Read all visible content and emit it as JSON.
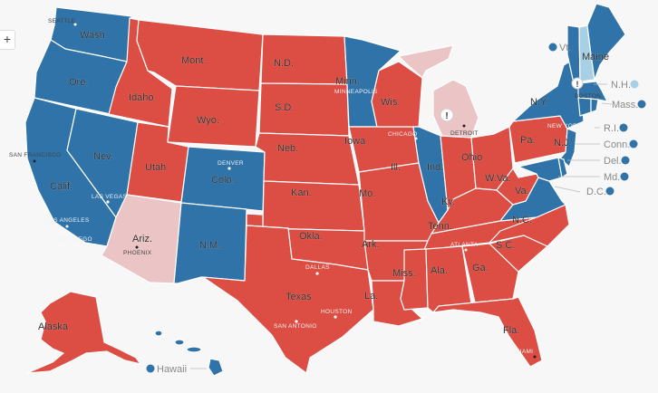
{
  "colors": {
    "dem": "#2f73a9",
    "rep": "#dc4d43",
    "lean_rep": "#ebc5c5",
    "lean_dem": "#a8d0e4",
    "border": "#ffffff",
    "background": "#f7f7f7"
  },
  "zoom_button": "+",
  "alert_icon": "!",
  "states": {
    "WA": {
      "label": "Wash.",
      "result": "dem"
    },
    "OR": {
      "label": "Ore.",
      "result": "dem"
    },
    "CA": {
      "label": "Calif.",
      "result": "dem"
    },
    "NV": {
      "label": "Nev.",
      "result": "dem"
    },
    "ID": {
      "label": "Idaho",
      "result": "rep"
    },
    "MT": {
      "label": "Mont.",
      "result": "rep"
    },
    "WY": {
      "label": "Wyo.",
      "result": "rep"
    },
    "UT": {
      "label": "Utah",
      "result": "rep"
    },
    "CO": {
      "label": "Colo.",
      "result": "dem"
    },
    "AZ": {
      "label": "Ariz.",
      "result": "lean_rep"
    },
    "NM": {
      "label": "N.M.",
      "result": "dem"
    },
    "ND": {
      "label": "N.D.",
      "result": "rep"
    },
    "SD": {
      "label": "S.D.",
      "result": "rep"
    },
    "NE": {
      "label": "Neb.",
      "result": "rep"
    },
    "KS": {
      "label": "Kan.",
      "result": "rep"
    },
    "OK": {
      "label": "Okla.",
      "result": "rep"
    },
    "TX": {
      "label": "Texas",
      "result": "rep"
    },
    "MN": {
      "label": "Minn.",
      "result": "dem"
    },
    "IA": {
      "label": "Iowa",
      "result": "rep"
    },
    "MO": {
      "label": "Mo.",
      "result": "rep"
    },
    "AR": {
      "label": "Ark.",
      "result": "rep"
    },
    "LA": {
      "label": "La.",
      "result": "rep"
    },
    "WI": {
      "label": "Wis.",
      "result": "rep"
    },
    "IL": {
      "label": "Ill.",
      "result": "dem"
    },
    "MI": {
      "label": "",
      "result": "lean_rep"
    },
    "IN": {
      "label": "Ind.",
      "result": "rep"
    },
    "OH": {
      "label": "Ohio",
      "result": "rep"
    },
    "KY": {
      "label": "Ky.",
      "result": "rep"
    },
    "TN": {
      "label": "Tenn.",
      "result": "rep"
    },
    "MS": {
      "label": "Miss.",
      "result": "rep"
    },
    "AL": {
      "label": "Ala.",
      "result": "rep"
    },
    "GA": {
      "label": "Ga.",
      "result": "rep"
    },
    "FL": {
      "label": "Fla.",
      "result": "rep"
    },
    "SC": {
      "label": "S.C.",
      "result": "rep"
    },
    "NC": {
      "label": "N.C.",
      "result": "rep"
    },
    "VA": {
      "label": "Va.",
      "result": "dem"
    },
    "WV": {
      "label": "W.Va.",
      "result": "rep"
    },
    "PA": {
      "label": "Pa.",
      "result": "rep"
    },
    "NY": {
      "label": "N.Y.",
      "result": "dem"
    },
    "NJ": {
      "label": "N.J.",
      "result": "dem"
    },
    "MD": {
      "label": "Md.",
      "result": "dem"
    },
    "DE": {
      "label": "Del.",
      "result": "dem"
    },
    "VT": {
      "label": "Vt.",
      "result": "dem"
    },
    "NH": {
      "label": "N.H.",
      "result": "lean_dem"
    },
    "ME": {
      "label": "Maine",
      "result": "dem"
    },
    "MA": {
      "label": "Mass.",
      "result": "dem"
    },
    "CT": {
      "label": "Conn.",
      "result": "dem"
    },
    "RI": {
      "label": "R.I.",
      "result": "dem"
    },
    "DC": {
      "label": "D.C.",
      "result": "dem"
    },
    "AK": {
      "label": "Alaska",
      "result": "rep"
    },
    "HI": {
      "label": "Hawaii",
      "result": "dem"
    }
  },
  "cities": {
    "seattle": "SEATTLE",
    "san_francisco": "SAN FRANCISCO",
    "las_vegas": "LAS VEGAS",
    "los_angeles": "LOS ANGELES",
    "san_diego": "SAN DIEGO",
    "phoenix": "PHOENIX",
    "denver": "DENVER",
    "minneapolis": "MINNEAPOLIS",
    "chicago": "CHICAGO",
    "detroit": "DETROIT",
    "boston": "BOSTON",
    "new_york": "NEW YORK",
    "atlanta": "ATLANTA",
    "dallas": "DALLAS",
    "houston": "HOUSTON",
    "san_antonio": "SAN ANTONIO",
    "miami": "MIAMI"
  }
}
